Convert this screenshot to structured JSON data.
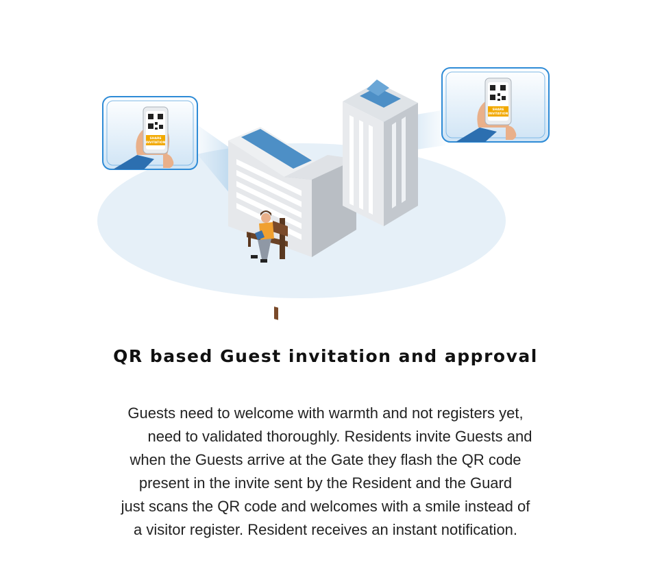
{
  "illustration": {
    "phone_badge_text": [
      "SHARE",
      "INVITATION"
    ],
    "icons": [
      "left-invite-card-icon",
      "right-invite-card-icon",
      "qr-code-icon",
      "hand-holding-phone-icon",
      "office-building-icon",
      "tower-building-icon",
      "person-on-bench-icon"
    ],
    "colors": {
      "ground": "#e8f1f8",
      "card_border": "#2e8bd6",
      "building": "#d5d8dc",
      "glass": "#4a90c6",
      "skin": "#e9b08a",
      "sleeve": "#2c6fb0",
      "badge": "#f2a900",
      "shirt": "#f0a030"
    }
  },
  "content": {
    "title": "QR based Guest invitation and approval",
    "description_lines": [
      "Guests need to welcome with warmth and not registers yet,",
      "need to validated thoroughly.  Residents invite Guests and",
      "when the Guests arrive at the Gate they flash the QR code",
      "present in the invite sent by the Resident and the Guard",
      "just scans the QR code and welcomes with a smile instead of",
      "a visitor register. Resident receives an instant notification."
    ]
  }
}
